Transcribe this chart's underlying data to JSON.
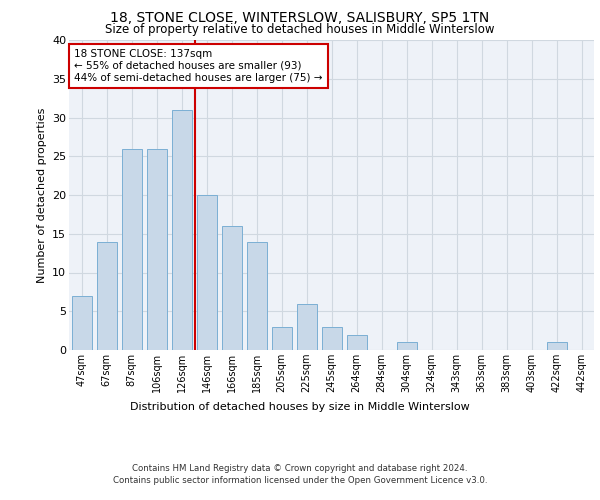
{
  "title1": "18, STONE CLOSE, WINTERSLOW, SALISBURY, SP5 1TN",
  "title2": "Size of property relative to detached houses in Middle Winterslow",
  "xlabel": "Distribution of detached houses by size in Middle Winterslow",
  "ylabel": "Number of detached properties",
  "footer1": "Contains HM Land Registry data © Crown copyright and database right 2024.",
  "footer2": "Contains public sector information licensed under the Open Government Licence v3.0.",
  "annotation_line1": "18 STONE CLOSE: 137sqm",
  "annotation_line2": "← 55% of detached houses are smaller (93)",
  "annotation_line3": "44% of semi-detached houses are larger (75) →",
  "bar_labels": [
    "47sqm",
    "67sqm",
    "87sqm",
    "106sqm",
    "126sqm",
    "146sqm",
    "166sqm",
    "185sqm",
    "205sqm",
    "225sqm",
    "245sqm",
    "264sqm",
    "284sqm",
    "304sqm",
    "324sqm",
    "343sqm",
    "363sqm",
    "383sqm",
    "403sqm",
    "422sqm",
    "442sqm"
  ],
  "bar_values": [
    7,
    14,
    26,
    26,
    31,
    20,
    16,
    14,
    3,
    6,
    3,
    2,
    0,
    1,
    0,
    0,
    0,
    0,
    0,
    1,
    0
  ],
  "bar_color": "#c8d8e8",
  "bar_edge_color": "#7bafd4",
  "bar_width": 0.8,
  "property_line_color": "#cc0000",
  "ylim": [
    0,
    40
  ],
  "yticks": [
    0,
    5,
    10,
    15,
    20,
    25,
    30,
    35,
    40
  ],
  "grid_color": "#d0d8e0",
  "bg_color": "#eef2f8",
  "annotation_box_color": "#cc0000",
  "annotation_bg": "#ffffff"
}
